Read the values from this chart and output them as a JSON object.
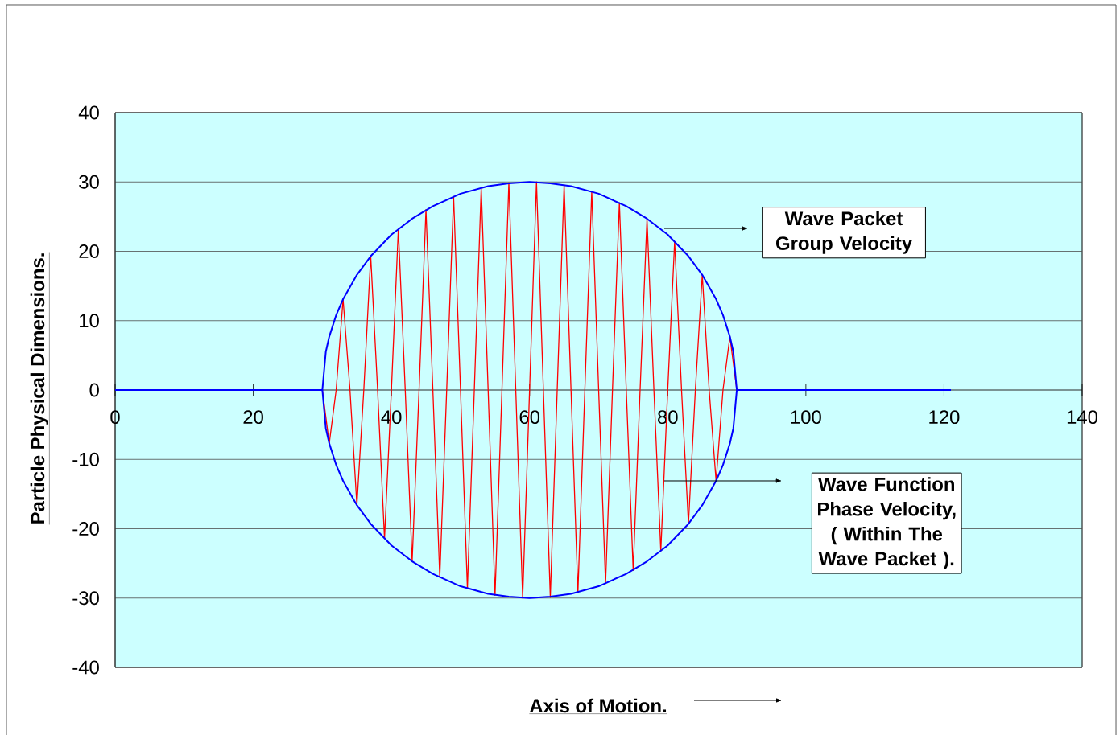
{
  "chart_data": {
    "type": "line",
    "xlabel": "Axis of Motion.",
    "ylabel": "Particle Physical Dimensions.",
    "annotations": [
      "Wave Packet Group Velocity",
      "Wave Function Phase Velocity, ( Within The Wave Packet )."
    ],
    "xlim": [
      0,
      140
    ],
    "ylim": [
      -40,
      40
    ],
    "xticks": [
      0,
      20,
      40,
      60,
      80,
      100,
      120,
      140
    ],
    "yticks": [
      -40,
      -30,
      -20,
      -10,
      0,
      10,
      20,
      30,
      40
    ],
    "grid": "y",
    "marker": "none",
    "line_style": "solid",
    "series": [
      {
        "color": "#ff0000",
        "x": [
          30,
          31,
          32,
          33,
          34,
          35,
          36,
          37,
          38,
          39,
          40,
          41,
          42,
          43,
          44,
          45,
          46,
          47,
          48,
          49,
          50,
          51,
          52,
          53,
          54,
          55,
          56,
          57,
          58,
          59,
          60,
          61,
          62,
          63,
          64,
          65,
          66,
          67,
          68,
          69,
          70,
          71,
          72,
          73,
          74,
          75,
          76,
          77,
          78,
          79,
          80,
          81,
          82,
          83,
          84,
          85,
          86,
          87,
          88,
          89,
          90
        ],
        "values": [
          0,
          -7.7,
          0,
          13.1,
          0,
          -16.6,
          0,
          19.3,
          0,
          -21.4,
          0,
          23.2,
          0,
          -24.7,
          0,
          26.0,
          0,
          -27.0,
          0,
          27.9,
          0,
          -28.6,
          0,
          29.2,
          0,
          -29.6,
          0,
          29.9,
          0,
          -30.0,
          0,
          30.0,
          0,
          -29.9,
          0,
          29.6,
          0,
          -29.2,
          0,
          28.6,
          0,
          -27.9,
          0,
          27.0,
          0,
          -26.0,
          0,
          24.7,
          0,
          -23.2,
          0,
          21.4,
          0,
          -19.3,
          0,
          16.6,
          0,
          -13.1,
          0,
          7.7,
          0
        ]
      },
      {
        "color": "#0000ff",
        "x": [
          0,
          29.5,
          30,
          30.5,
          31,
          32,
          33,
          35,
          37,
          40,
          43,
          46,
          50,
          54,
          57,
          60,
          63,
          66,
          70,
          74,
          77,
          80,
          83,
          85,
          87,
          88,
          89,
          89.5,
          90,
          90.5,
          121
        ],
        "values": [
          0,
          0,
          0,
          5.5,
          7.7,
          10.8,
          13.1,
          16.6,
          19.3,
          22.4,
          24.7,
          26.5,
          28.3,
          29.4,
          29.8,
          30.0,
          29.8,
          29.4,
          28.3,
          26.5,
          24.7,
          22.4,
          19.3,
          16.6,
          13.1,
          10.8,
          7.7,
          5.5,
          0,
          0,
          0
        ]
      },
      {
        "color": "#0000ff",
        "x": [
          29.5,
          30,
          30.5,
          31,
          32,
          33,
          35,
          37,
          40,
          43,
          46,
          50,
          54,
          57,
          60,
          63,
          66,
          70,
          74,
          77,
          80,
          83,
          85,
          87,
          88,
          89,
          89.5,
          90,
          90.5
        ],
        "values": [
          0,
          0,
          -5.5,
          -7.7,
          -10.8,
          -13.1,
          -16.6,
          -19.3,
          -22.4,
          -24.7,
          -26.5,
          -28.3,
          -29.4,
          -29.8,
          -30.0,
          -29.8,
          -29.4,
          -28.3,
          -26.5,
          -24.7,
          -22.4,
          -19.3,
          -16.6,
          -13.1,
          -10.8,
          -7.7,
          -5.5,
          0,
          0
        ]
      }
    ]
  }
}
